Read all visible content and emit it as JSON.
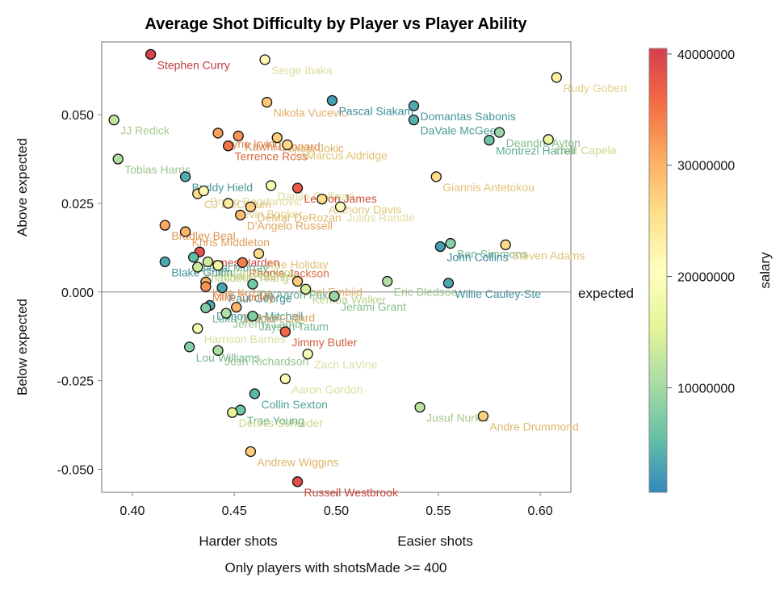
{
  "chart_data": {
    "type": "scatter",
    "title": "Average Shot Difficulty by Player vs Player Ability",
    "x_annotations": {
      "left": "Harder shots",
      "right": "Easier shots"
    },
    "y_annotations": {
      "top": "Above expected",
      "bottom": "Below expected"
    },
    "reference_line": {
      "y": 0.0,
      "label": "expected"
    },
    "footnote": "Only players with shotsMade >= 400",
    "xlim": [
      0.385,
      0.615
    ],
    "ylim": [
      -0.0565,
      0.0705
    ],
    "x_ticks": [
      "0.40",
      "0.45",
      "0.50",
      "0.55",
      "0.60"
    ],
    "y_ticks": [
      "-0.050",
      "-0.025",
      "0.000",
      "0.025",
      "0.050"
    ],
    "colorbar": {
      "label": "salary",
      "min": 600000,
      "max": 40500000,
      "ticks": [
        "10000000",
        "20000000",
        "30000000",
        "40000000"
      ],
      "colormap": "Spectral_r"
    },
    "points": [
      {
        "name": "Stephen Curry",
        "x": 0.409,
        "y": 0.067,
        "salary": 40000000
      },
      {
        "name": "Serge Ibaka",
        "x": 0.465,
        "y": 0.0655,
        "salary": 21700000
      },
      {
        "name": "Rudy Gobert",
        "x": 0.608,
        "y": 0.0605,
        "salary": 23200000
      },
      {
        "name": "Nikola Vucevic",
        "x": 0.466,
        "y": 0.0535,
        "salary": 28000000
      },
      {
        "name": "Pascal Siakam",
        "x": 0.498,
        "y": 0.054,
        "salary": 2400000
      },
      {
        "name": "Domantas Sabonis",
        "x": 0.538,
        "y": 0.0525,
        "salary": 3500000
      },
      {
        "name": "JJ Redick",
        "x": 0.391,
        "y": 0.0485,
        "salary": 12300000
      },
      {
        "name": "DaVale McGee",
        "x": 0.538,
        "y": 0.0485,
        "salary": 4200000
      },
      {
        "name": "Deandre Ayton",
        "x": 0.58,
        "y": 0.045,
        "salary": 9200000
      },
      {
        "name": "Clint Capela",
        "x": 0.604,
        "y": 0.043,
        "salary": 16400000
      },
      {
        "name": "Montrezl Harrell",
        "x": 0.575,
        "y": 0.0428,
        "salary": 6000000
      },
      {
        "name": "Kyrie Irving",
        "x": 0.442,
        "y": 0.0448,
        "salary": 31700000
      },
      {
        "name": "Kawhi Leonard",
        "x": 0.452,
        "y": 0.044,
        "salary": 32700000
      },
      {
        "name": "Nikola Jokic",
        "x": 0.471,
        "y": 0.0435,
        "salary": 27500000
      },
      {
        "name": "Terrence Ross",
        "x": 0.447,
        "y": 0.0412,
        "salary": 35000000
      },
      {
        "name": "LaMarcus Aldridge",
        "x": 0.476,
        "y": 0.0415,
        "salary": 26000000
      },
      {
        "name": "Tobias Harris",
        "x": 0.393,
        "y": 0.0375,
        "salary": 11000000
      },
      {
        "name": "Giannis Antetokou",
        "x": 0.549,
        "y": 0.0325,
        "salary": 25800000
      },
      {
        "name": "Buddy Hield",
        "x": 0.426,
        "y": 0.0325,
        "salary": 3900000
      },
      {
        "name": "Danilo Gallinari",
        "x": 0.468,
        "y": 0.03,
        "salary": 18500000
      },
      {
        "name": "LeBron James",
        "x": 0.481,
        "y": 0.0293,
        "salary": 37500000
      },
      {
        "name": "CJ McCollum",
        "x": 0.432,
        "y": 0.0277,
        "salary": 25800000
      },
      {
        "name": "Bryan Bogdanovic",
        "x": 0.435,
        "y": 0.0285,
        "salary": 21600000
      },
      {
        "name": "Anthony Davis",
        "x": 0.493,
        "y": 0.0262,
        "salary": 25500000
      },
      {
        "name": "Devin Booker",
        "x": 0.447,
        "y": 0.025,
        "salary": 24000000
      },
      {
        "name": "DeMar DeRozan",
        "x": 0.458,
        "y": 0.024,
        "salary": 27000000
      },
      {
        "name": "Julius Randle",
        "x": 0.502,
        "y": 0.024,
        "salary": 21000000
      },
      {
        "name": "D'Angelo Russell",
        "x": 0.453,
        "y": 0.0217,
        "salary": 29000000
      },
      {
        "name": "Khris Middleton",
        "x": 0.426,
        "y": 0.017,
        "salary": 30000000
      },
      {
        "name": "Bradley Beal",
        "x": 0.416,
        "y": 0.0188,
        "salary": 31000000
      },
      {
        "name": "Ben Simmons",
        "x": 0.556,
        "y": 0.0137,
        "salary": 8100000
      },
      {
        "name": "Steven Adams",
        "x": 0.583,
        "y": 0.0133,
        "salary": 25800000
      },
      {
        "name": "John Collins",
        "x": 0.551,
        "y": 0.0128,
        "salary": 2500000
      },
      {
        "name": "James Harden",
        "x": 0.433,
        "y": 0.0113,
        "salary": 38200000
      },
      {
        "name": "Jamal Murray",
        "x": 0.43,
        "y": 0.0098,
        "salary": 5000000
      },
      {
        "name": "Jordan Clarkson",
        "x": 0.437,
        "y": 0.0085,
        "salary": 13400000
      },
      {
        "name": "Jrue Holiday",
        "x": 0.462,
        "y": 0.0108,
        "salary": 26100000
      },
      {
        "name": "Blake Griffin",
        "x": 0.416,
        "y": 0.0085,
        "salary": 3300000
      },
      {
        "name": "Reggie Jackson",
        "x": 0.454,
        "y": 0.0083,
        "salary": 34200000
      },
      {
        "name": "Thaddeus Young",
        "x": 0.432,
        "y": 0.007,
        "salary": 13500000
      },
      {
        "name": "Evan Fournier",
        "x": 0.442,
        "y": 0.0075,
        "salary": 17000000
      },
      {
        "name": "Joel Embiid",
        "x": 0.481,
        "y": 0.003,
        "salary": 27500000
      },
      {
        "name": "Eric Bledsoe",
        "x": 0.525,
        "y": 0.003,
        "salary": 11000000
      },
      {
        "name": "Willie Cauley-Ste",
        "x": 0.555,
        "y": 0.0025,
        "salary": 3000000
      },
      {
        "name": "Kyle Kuzma",
        "x": 0.436,
        "y": 0.0028,
        "salary": 30000000
      },
      {
        "name": "Paul George",
        "x": 0.444,
        "y": 0.0012,
        "salary": 3000000
      },
      {
        "name": "De'Aaron Fox",
        "x": 0.459,
        "y": 0.0022,
        "salary": 6500000
      },
      {
        "name": "Kemba Walker",
        "x": 0.485,
        "y": 0.0008,
        "salary": 14000000
      },
      {
        "name": "Mike Conley",
        "x": 0.436,
        "y": 0.0015,
        "salary": 32700000
      },
      {
        "name": "Donovan Mitchell",
        "x": 0.438,
        "y": -0.0038,
        "salary": 3600000
      },
      {
        "name": "Jerami Grant",
        "x": 0.499,
        "y": -0.0012,
        "salary": 9300000
      },
      {
        "name": "Luka Doncic",
        "x": 0.436,
        "y": -0.0045,
        "salary": 7700000
      },
      {
        "name": "Damian Lillard",
        "x": 0.451,
        "y": -0.0043,
        "salary": 29800000
      },
      {
        "name": "Jeremy Lamb",
        "x": 0.446,
        "y": -0.006,
        "salary": 11000000
      },
      {
        "name": "Jayson Tatum",
        "x": 0.459,
        "y": -0.0068,
        "salary": 7800000
      },
      {
        "name": "Harrison Barnes",
        "x": 0.432,
        "y": -0.0103,
        "salary": 19000000
      },
      {
        "name": "Jimmy Butler",
        "x": 0.475,
        "y": -0.0112,
        "salary": 36000000
      },
      {
        "name": "Zach LaVine",
        "x": 0.486,
        "y": -0.0175,
        "salary": 19500000
      },
      {
        "name": "Lou Williams",
        "x": 0.428,
        "y": -0.0155,
        "salary": 8000000
      },
      {
        "name": "Josh Richardson",
        "x": 0.442,
        "y": -0.0165,
        "salary": 10500000
      },
      {
        "name": "Aaron Gordon",
        "x": 0.475,
        "y": -0.0245,
        "salary": 19500000
      },
      {
        "name": "Collin Sexton",
        "x": 0.46,
        "y": -0.0287,
        "salary": 4600000
      },
      {
        "name": "Jusuf Nurkic",
        "x": 0.541,
        "y": -0.0325,
        "salary": 12000000
      },
      {
        "name": "Trae Young",
        "x": 0.453,
        "y": -0.0333,
        "salary": 6300000
      },
      {
        "name": "Dennis Schroder",
        "x": 0.449,
        "y": -0.034,
        "salary": 15500000
      },
      {
        "name": "Andre Drummond",
        "x": 0.572,
        "y": -0.035,
        "salary": 27100000
      },
      {
        "name": "Andrew Wiggins",
        "x": 0.458,
        "y": -0.045,
        "salary": 27500000
      },
      {
        "name": "Russell Westbrook",
        "x": 0.481,
        "y": -0.0535,
        "salary": 38500000
      }
    ]
  }
}
